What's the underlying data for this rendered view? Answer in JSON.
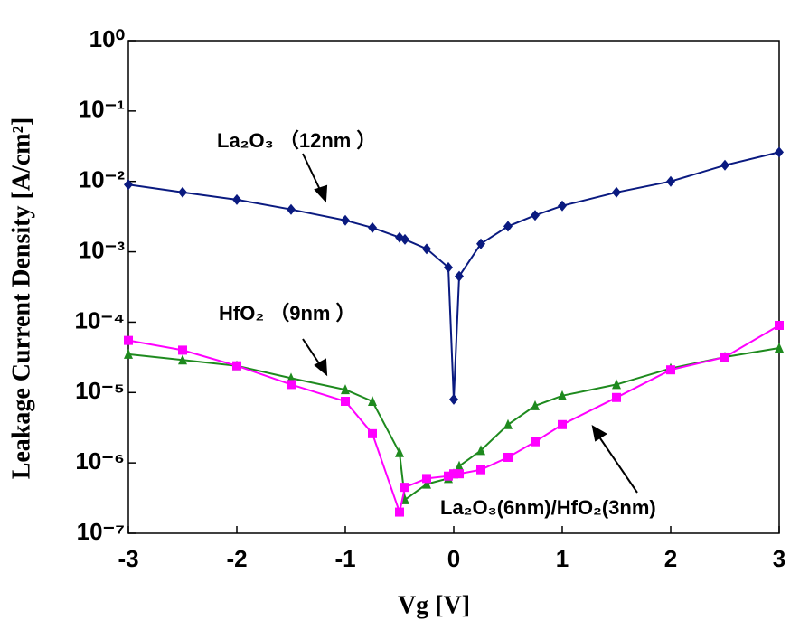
{
  "chart_data": {
    "type": "line",
    "xlabel": "Vg [V]",
    "ylabel": "Leakage Current Density [A/cm²]",
    "x": [
      -3,
      -2.5,
      -2,
      -1.5,
      -1,
      -0.75,
      -0.5,
      -0.45,
      -0.25,
      -0.05,
      0,
      0.05,
      0.25,
      0.5,
      0.75,
      1,
      1.5,
      2,
      2.5,
      3
    ],
    "series": [
      {
        "name": "La₂O₃ （12nm ）",
        "color": "#0a1a80",
        "marker": "diamond",
        "values": [
          0.009,
          0.007,
          0.0055,
          0.004,
          0.0028,
          0.0022,
          0.0016,
          0.0015,
          0.0011,
          0.0006,
          8e-06,
          0.00045,
          0.0013,
          0.0023,
          0.0033,
          0.0045,
          0.007,
          0.01,
          0.017,
          0.026
        ]
      },
      {
        "name": "HfO₂ （9nm ）",
        "color": "#1e8a1e",
        "marker": "triangle",
        "values": [
          3.5e-05,
          2.9e-05,
          2.4e-05,
          1.6e-05,
          1.1e-05,
          7.5e-06,
          1.4e-06,
          3e-07,
          5e-07,
          6e-07,
          7e-07,
          9e-07,
          1.5e-06,
          3.5e-06,
          6.5e-06,
          9e-06,
          1.3e-05,
          2.2e-05,
          3.2e-05,
          4.3e-05
        ]
      },
      {
        "name": "La₂O₃(6nm)/HfO₂(3nm)",
        "color": "#ff00ff",
        "marker": "square",
        "values": [
          5.5e-05,
          4e-05,
          2.4e-05,
          1.3e-05,
          7.5e-06,
          2.6e-06,
          2e-07,
          4.5e-07,
          6e-07,
          6.5e-07,
          7e-07,
          7e-07,
          8e-07,
          1.2e-06,
          2e-06,
          3.5e-06,
          8.5e-06,
          2.1e-05,
          3.2e-05,
          9e-05
        ]
      }
    ],
    "xlim": [
      -3,
      3
    ],
    "xticks": [
      -3,
      -2,
      -1,
      0,
      1,
      2,
      3
    ],
    "ylim": [
      1e-07,
      1
    ],
    "log_y": true,
    "yticks": [
      {
        "value": 1,
        "label": "10⁰"
      },
      {
        "value": 0.1,
        "label": "10⁻¹"
      },
      {
        "value": 0.01,
        "label": "10⁻²"
      },
      {
        "value": 0.001,
        "label": "10⁻³"
      },
      {
        "value": 0.0001,
        "label": "10⁻⁴"
      },
      {
        "value": 1e-05,
        "label": "10⁻⁵"
      },
      {
        "value": 1e-06,
        "label": "10⁻⁶"
      },
      {
        "value": 1e-07,
        "label": "10⁻⁷"
      }
    ],
    "grid": false
  }
}
